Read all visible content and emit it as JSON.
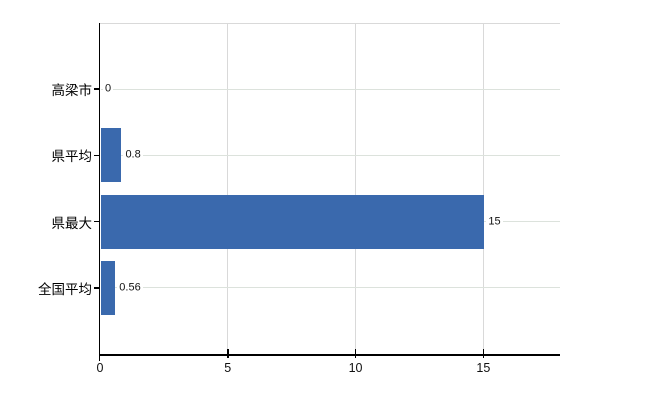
{
  "chart_data": {
    "type": "bar",
    "orientation": "horizontal",
    "categories": [
      "高梁市",
      "県平均",
      "県最大",
      "全国平均"
    ],
    "values": [
      0,
      0.8,
      15,
      0.56
    ],
    "value_labels": [
      "0",
      "0.8",
      "15",
      "0.56"
    ],
    "x_ticks": [
      "0",
      "5",
      "10",
      "15"
    ],
    "x_tick_values": [
      0,
      5,
      10,
      15
    ],
    "xlim": [
      0,
      18
    ],
    "grid": true,
    "legend": false,
    "colors": {
      "bar": "#3a69ad",
      "vertical_gridline": "#d9d9d9",
      "row_gridline": "#dce2dc",
      "axis": "#000000",
      "background": "#ffffff"
    }
  }
}
